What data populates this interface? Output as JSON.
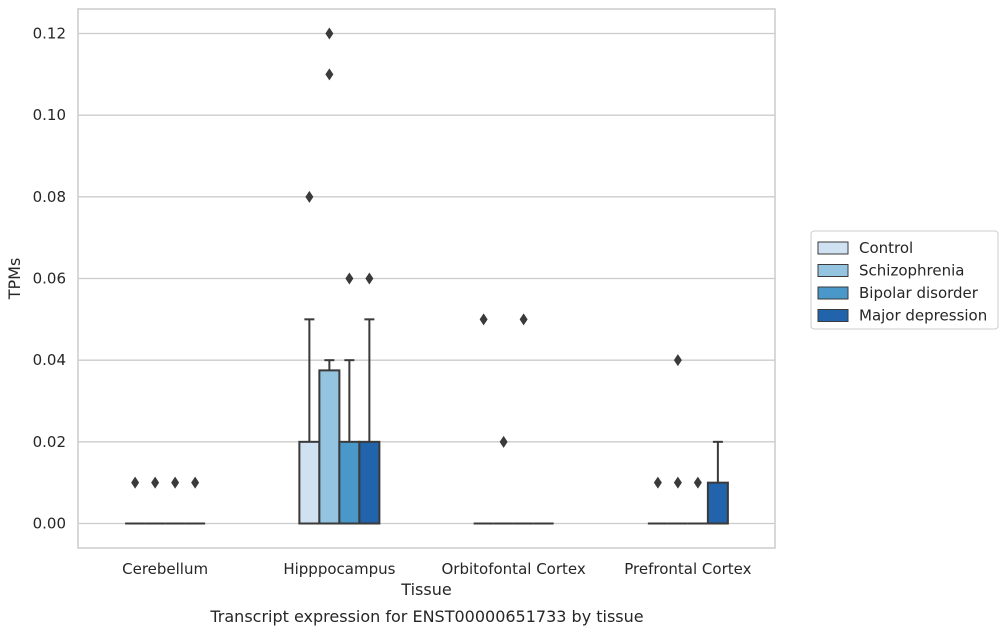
{
  "caption": "Transcript expression for ENST00000651733 by tissue",
  "chart_data": {
    "type": "box",
    "xlabel": "Tissue",
    "ylabel": "TPMs",
    "categories": [
      "Cerebellum",
      "Hipppocampus",
      "Orbitofontal Cortex",
      "Prefrontal Cortex"
    ],
    "ylim": [
      -0.006,
      0.126
    ],
    "yticks": [
      0.0,
      0.02,
      0.04,
      0.06,
      0.08,
      0.1,
      0.12
    ],
    "ytick_labels": [
      "0.00",
      "0.02",
      "0.04",
      "0.06",
      "0.08",
      "0.10",
      "0.12"
    ],
    "grid": true,
    "legend_position": "right",
    "series": [
      {
        "name": "Control",
        "color": "#d0e1f2",
        "boxes": [
          {
            "q1": 0,
            "median": 0,
            "q3": 0,
            "whislo": 0,
            "whishi": 0,
            "fliers": [
              0.01
            ]
          },
          {
            "q1": 0,
            "median": 0,
            "q3": 0.02,
            "whislo": 0,
            "whishi": 0.05,
            "fliers": [
              0.08
            ]
          },
          {
            "q1": 0,
            "median": 0,
            "q3": 0,
            "whislo": 0,
            "whishi": 0,
            "fliers": [
              0.05
            ]
          },
          {
            "q1": 0,
            "median": 0,
            "q3": 0,
            "whislo": 0,
            "whishi": 0,
            "fliers": [
              0.01
            ]
          }
        ]
      },
      {
        "name": "Schizophrenia",
        "color": "#94c4df",
        "boxes": [
          {
            "q1": 0,
            "median": 0,
            "q3": 0,
            "whislo": 0,
            "whishi": 0,
            "fliers": [
              0.01
            ]
          },
          {
            "q1": 0,
            "median": 0,
            "q3": 0.0375,
            "whislo": 0,
            "whishi": 0.04,
            "fliers": [
              0.11,
              0.12
            ]
          },
          {
            "q1": 0,
            "median": 0,
            "q3": 0,
            "whislo": 0,
            "whishi": 0,
            "fliers": [
              0.02
            ]
          },
          {
            "q1": 0,
            "median": 0,
            "q3": 0,
            "whislo": 0,
            "whishi": 0,
            "fliers": [
              0.01,
              0.04
            ]
          }
        ]
      },
      {
        "name": "Bipolar disorder",
        "color": "#4a98c9",
        "boxes": [
          {
            "q1": 0,
            "median": 0,
            "q3": 0,
            "whislo": 0,
            "whishi": 0,
            "fliers": [
              0.01
            ]
          },
          {
            "q1": 0,
            "median": 0,
            "q3": 0.02,
            "whislo": 0,
            "whishi": 0.04,
            "fliers": [
              0.06
            ]
          },
          {
            "q1": 0,
            "median": 0,
            "q3": 0,
            "whislo": 0,
            "whishi": 0,
            "fliers": [
              0.05
            ]
          },
          {
            "q1": 0,
            "median": 0,
            "q3": 0,
            "whislo": 0,
            "whishi": 0,
            "fliers": [
              0.01
            ]
          }
        ]
      },
      {
        "name": "Major depression",
        "color": "#2164ab",
        "boxes": [
          {
            "q1": 0,
            "median": 0,
            "q3": 0,
            "whislo": 0,
            "whishi": 0,
            "fliers": [
              0.01
            ]
          },
          {
            "q1": 0,
            "median": 0,
            "q3": 0.02,
            "whislo": 0,
            "whishi": 0.05,
            "fliers": [
              0.06
            ]
          },
          {
            "q1": 0,
            "median": 0,
            "q3": 0,
            "whislo": 0,
            "whishi": 0,
            "fliers": []
          },
          {
            "q1": 0,
            "median": 0,
            "q3": 0.01,
            "whislo": 0,
            "whishi": 0.02,
            "fliers": []
          }
        ]
      }
    ]
  }
}
